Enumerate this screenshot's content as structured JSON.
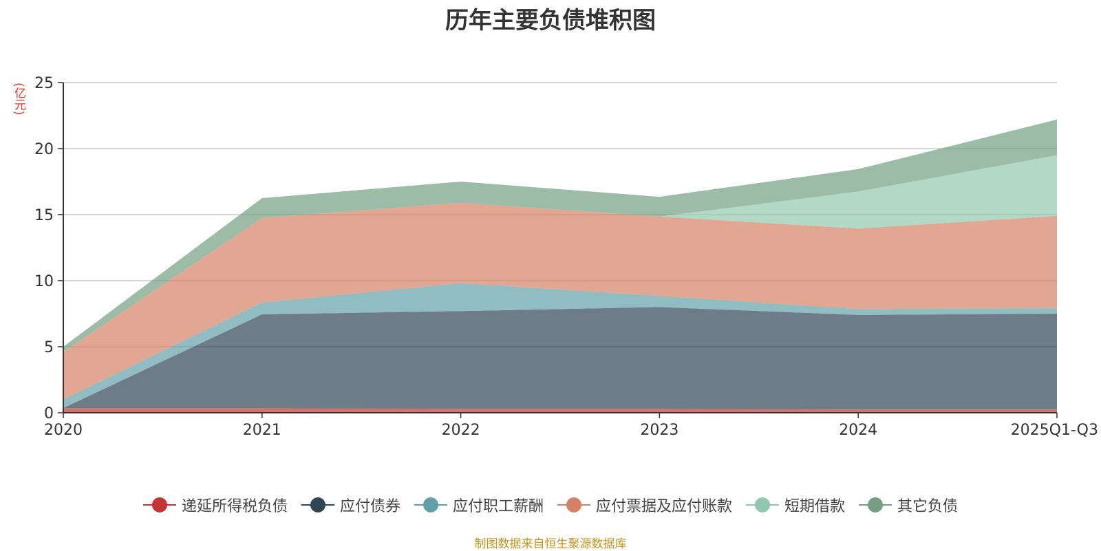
{
  "chart_data": {
    "type": "area",
    "stacked": true,
    "title": "历年主要负债堆积图",
    "ylabel": "(亿元)",
    "xlabel": "",
    "ylim": [
      0,
      25
    ],
    "yticks": [
      0,
      5,
      10,
      15,
      20,
      25
    ],
    "grid": true,
    "legend_position": "bottom",
    "categories": [
      "2020",
      "2021",
      "2022",
      "2023",
      "2024",
      "2025Q1-Q3"
    ],
    "series": [
      {
        "name": "递延所得税负债",
        "color": "#c23531",
        "values": [
          0.35,
          0.35,
          0.3,
          0.3,
          0.25,
          0.25
        ]
      },
      {
        "name": "应付债券",
        "color": "#2f4554",
        "values": [
          0,
          7.1,
          7.4,
          7.7,
          7.15,
          7.25
        ]
      },
      {
        "name": "应付职工薪酬",
        "color": "#61a0a8",
        "values": [
          0.65,
          0.9,
          2.1,
          0.85,
          0.45,
          0.4
        ]
      },
      {
        "name": "应付票据及应付账款",
        "color": "#d48265",
        "values": [
          3.6,
          6.4,
          6.1,
          6.0,
          6.1,
          7.0
        ]
      },
      {
        "name": "短期借款",
        "color": "#91c7ae",
        "values": [
          0,
          0,
          0,
          0,
          2.8,
          4.6
        ]
      },
      {
        "name": "其它负债",
        "color": "#749f83",
        "values": [
          0.4,
          1.5,
          1.6,
          1.5,
          1.7,
          2.7
        ]
      }
    ]
  },
  "source_note": "制图数据来自恒生聚源数据库"
}
